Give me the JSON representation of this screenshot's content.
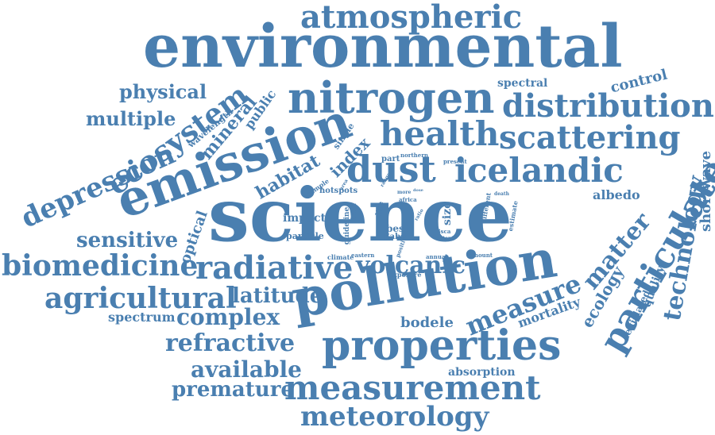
{
  "cloud": {
    "color": "#4a7fb0",
    "words": [
      "science",
      "environmental",
      "pollution",
      "emission",
      "properties",
      "nitrogen",
      "measurement",
      "atmospheric",
      "dust",
      "icelandic",
      "health",
      "scattering",
      "distribution",
      "particulate",
      "ecosystem",
      "depression",
      "radiative",
      "agricultural",
      "biomedicine",
      "meteorology",
      "measure",
      "matter",
      "technology",
      "volcanic",
      "refractive",
      "available",
      "premature",
      "complex",
      "latitude",
      "sensitive",
      "physical",
      "multiple",
      "mineral",
      "public",
      "wavelength",
      "habitat",
      "index",
      "single",
      "sample",
      "hotspots",
      "impact",
      "particle",
      "optical",
      "spectrum",
      "bodele",
      "absorption",
      "mortality",
      "ecology",
      "quality",
      "legislated",
      "shortwave",
      "albedo",
      "control",
      "spectral",
      "part",
      "northern",
      "present",
      "more",
      "africa",
      "life",
      "best",
      "size",
      "βabs",
      "βsca",
      "extent",
      "different",
      "estimate",
      "death",
      "climate",
      "eastern",
      "exposure",
      "annual",
      "amount",
      "positive",
      "guideline",
      "iron",
      "dose",
      "ratio",
      "range",
      "area"
    ]
  }
}
